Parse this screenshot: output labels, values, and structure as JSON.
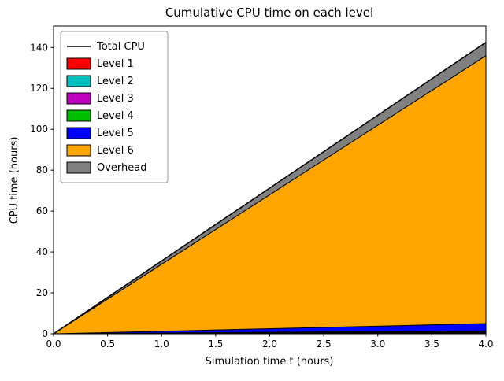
{
  "chart_data": {
    "type": "area",
    "stacked": true,
    "title": "Cumulative CPU time on each level",
    "xlabel": "Simulation time t (hours)",
    "ylabel": "CPU time (hours)",
    "xlim": [
      0,
      4
    ],
    "ylim": [
      0,
      150.5
    ],
    "x_tick_labels": [
      "0.0",
      "0.5",
      "1.0",
      "1.5",
      "2.0",
      "2.5",
      "3.0",
      "3.5",
      "4.0"
    ],
    "y_tick_labels": [
      "0",
      "20",
      "40",
      "60",
      "80",
      "100",
      "120",
      "140"
    ],
    "grid": false,
    "x": [
      0,
      4
    ],
    "series": [
      {
        "name": "Level 1",
        "color": "#ff0000",
        "values": [
          0,
          0.3
        ]
      },
      {
        "name": "Level 2",
        "color": "#00bfbf",
        "values": [
          0,
          0.3
        ]
      },
      {
        "name": "Level 3",
        "color": "#bf00bf",
        "values": [
          0,
          0.4
        ]
      },
      {
        "name": "Level 4",
        "color": "#00bf00",
        "values": [
          0,
          0.5
        ]
      },
      {
        "name": "Level 5",
        "color": "#0000ff",
        "values": [
          0,
          3.5
        ]
      },
      {
        "name": "Level 6",
        "color": "#ffa500",
        "values": [
          0,
          131
        ]
      },
      {
        "name": "Overhead",
        "color": "#808080",
        "values": [
          0,
          6.5
        ]
      }
    ],
    "total_line": {
      "name": "Total CPU",
      "color": "#000000",
      "values": [
        0,
        142.5
      ]
    },
    "legend": {
      "position": "upper left",
      "entries": [
        {
          "label": "Total CPU",
          "type": "line",
          "color": "#000000"
        },
        {
          "label": "Level 1",
          "type": "patch",
          "color": "#ff0000"
        },
        {
          "label": "Level 2",
          "type": "patch",
          "color": "#00bfbf"
        },
        {
          "label": "Level 3",
          "type": "patch",
          "color": "#bf00bf"
        },
        {
          "label": "Level 4",
          "type": "patch",
          "color": "#00bf00"
        },
        {
          "label": "Level 5",
          "type": "patch",
          "color": "#0000ff"
        },
        {
          "label": "Level 6",
          "type": "patch",
          "color": "#ffa500"
        },
        {
          "label": "Overhead",
          "type": "patch",
          "color": "#808080"
        }
      ]
    }
  }
}
